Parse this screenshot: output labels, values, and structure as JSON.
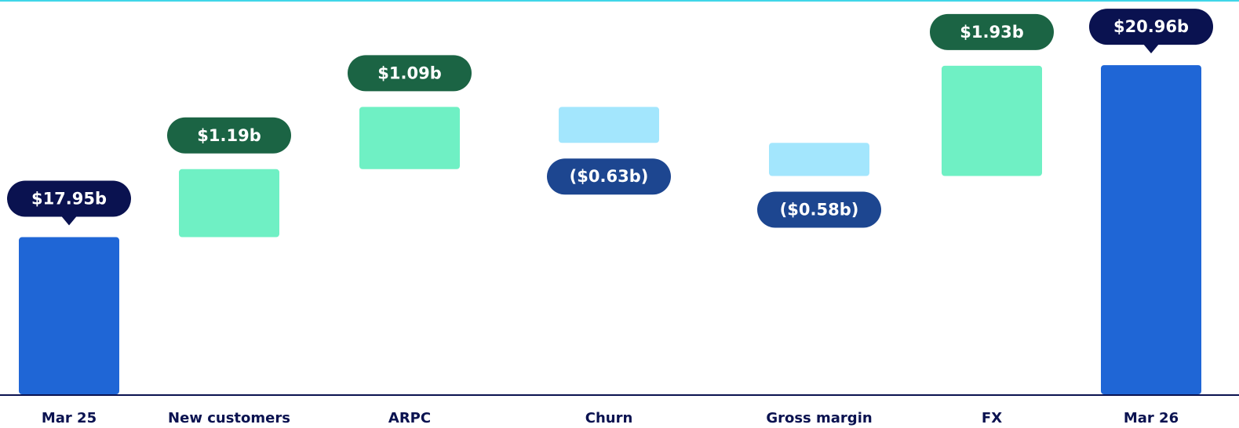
{
  "chart_data": {
    "type": "waterfall",
    "categories": [
      "Mar 25",
      "New customers",
      "ARPC",
      "Churn",
      "Gross margin",
      "FX",
      "Mar 26"
    ],
    "values": [
      17.95,
      1.19,
      1.09,
      -0.63,
      -0.58,
      1.93,
      20.96
    ],
    "value_labels": [
      "$17.95b",
      "$1.19b",
      "$1.09b",
      "($0.63b)",
      "($0.58b)",
      "$1.93b",
      "$20.96b"
    ],
    "colors": [
      "#1f66d6",
      "#6ff0c4",
      "#6ff0c4",
      "#a3e6fd",
      "#a3e6fd",
      "#6ff0c4",
      "#1f66d6"
    ],
    "label_colors": [
      "#0a1250",
      "#1b6444",
      "#1b6444",
      "#1d4690",
      "#1d4690",
      "#1b6444",
      "#0a1250"
    ],
    "ylim": [
      15.2,
      22.1
    ]
  }
}
